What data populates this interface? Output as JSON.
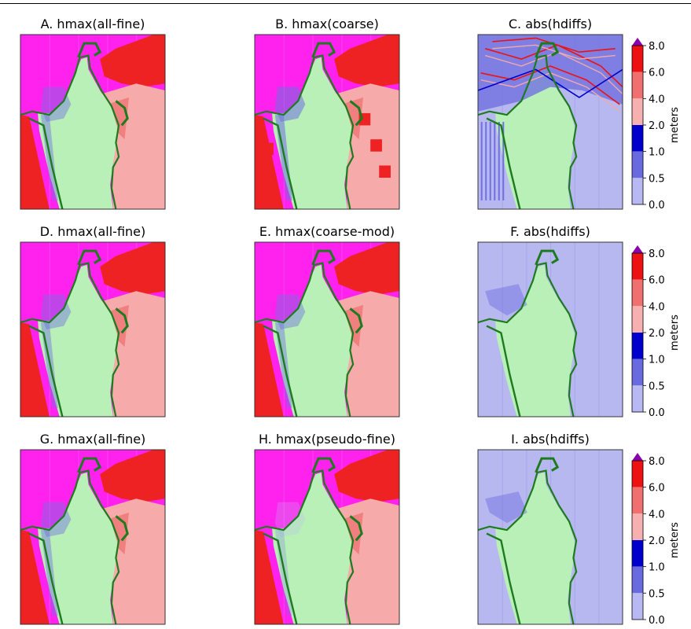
{
  "colors": {
    "ocean_magenta": "#ff22ee",
    "ocean_magenta_light": "#ff5cf2",
    "depth_red": "#ee2222",
    "depth_salmon": "#f08080",
    "depth_pink": "#f6aaaa",
    "land_green": "#b8f0b8",
    "coast_green": "#1e7a1e",
    "diff_light": "#b8b8f0",
    "diff_mid": "#7070e0",
    "diff_dark": "#0000cc",
    "diff_pink": "#f2a8a8",
    "diff_red": "#ee1111",
    "cbar_arrow": "#8800aa"
  },
  "colorbar": {
    "label": "meters",
    "ticks": [
      "8.0",
      "6.0",
      "4.0",
      "2.0",
      "1.0",
      "0.5",
      "0.0"
    ],
    "bins": [
      {
        "range": [
          6.0,
          8.0
        ],
        "color": "#ee1111"
      },
      {
        "range": [
          4.0,
          6.0
        ],
        "color": "#f07070"
      },
      {
        "range": [
          2.0,
          4.0
        ],
        "color": "#f6b0b0"
      },
      {
        "range": [
          1.0,
          2.0
        ],
        "color": "#0000cc"
      },
      {
        "range": [
          0.5,
          1.0
        ],
        "color": "#6a6ae0"
      },
      {
        "range": [
          0.0,
          0.5
        ],
        "color": "#b8b8f2"
      }
    ]
  },
  "chart_data": [
    {
      "type": "heatmap",
      "panel": "A",
      "title": "A. hmax(all-fine)",
      "kind": "hmax",
      "variant": "fine"
    },
    {
      "type": "heatmap",
      "panel": "B",
      "title": "B. hmax(coarse)",
      "kind": "hmax",
      "variant": "coarse"
    },
    {
      "type": "heatmap",
      "panel": "C",
      "title": "C. abs(hdiffs)",
      "kind": "diff",
      "variant": "high",
      "colorbar": "meters"
    },
    {
      "type": "heatmap",
      "panel": "D",
      "title": "D. hmax(all-fine)",
      "kind": "hmax",
      "variant": "fine"
    },
    {
      "type": "heatmap",
      "panel": "E",
      "title": "E. hmax(coarse-mod)",
      "kind": "hmax",
      "variant": "mod"
    },
    {
      "type": "heatmap",
      "panel": "F",
      "title": "F. abs(hdiffs)",
      "kind": "diff",
      "variant": "low",
      "colorbar": "meters"
    },
    {
      "type": "heatmap",
      "panel": "G",
      "title": "G. hmax(all-fine)",
      "kind": "hmax",
      "variant": "fine"
    },
    {
      "type": "heatmap",
      "panel": "H",
      "title": "H. hmax(pseudo-fine)",
      "kind": "hmax",
      "variant": "pseudo"
    },
    {
      "type": "heatmap",
      "panel": "I",
      "title": "I. abs(hdiffs)",
      "kind": "diff",
      "variant": "low",
      "colorbar": "meters"
    }
  ]
}
